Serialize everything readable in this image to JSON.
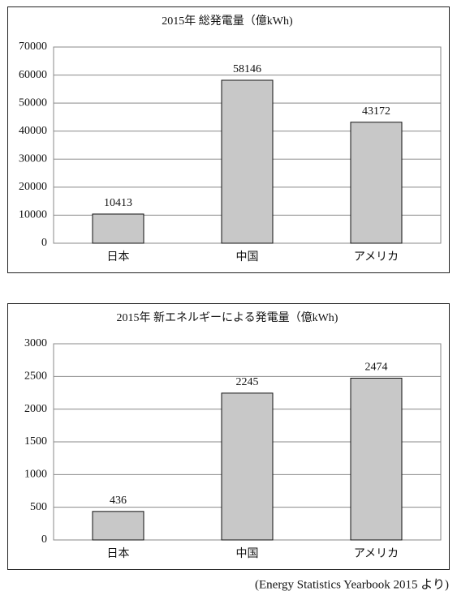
{
  "chart_data": [
    {
      "type": "bar",
      "title": "2015年 総発電量（億kWh)",
      "categories": [
        "日本",
        "中国",
        "アメリカ"
      ],
      "values": [
        10413,
        58146,
        43172
      ],
      "color": "#c8c8c8",
      "ylim": [
        0,
        70000
      ],
      "yticks": [
        0,
        10000,
        20000,
        30000,
        40000,
        50000,
        60000,
        70000
      ],
      "grid": true
    },
    {
      "type": "bar",
      "title": "2015年 新エネルギーによる発電量（億kWh)",
      "categories": [
        "日本",
        "中国",
        "アメリカ"
      ],
      "values": [
        436,
        2245,
        2474
      ],
      "color": "#c8c8c8",
      "ylim": [
        0,
        3000
      ],
      "yticks": [
        0,
        500,
        1000,
        1500,
        2000,
        2500,
        3000
      ],
      "grid": true
    }
  ],
  "source": "(Energy Statistics Yearbook 2015 より)"
}
